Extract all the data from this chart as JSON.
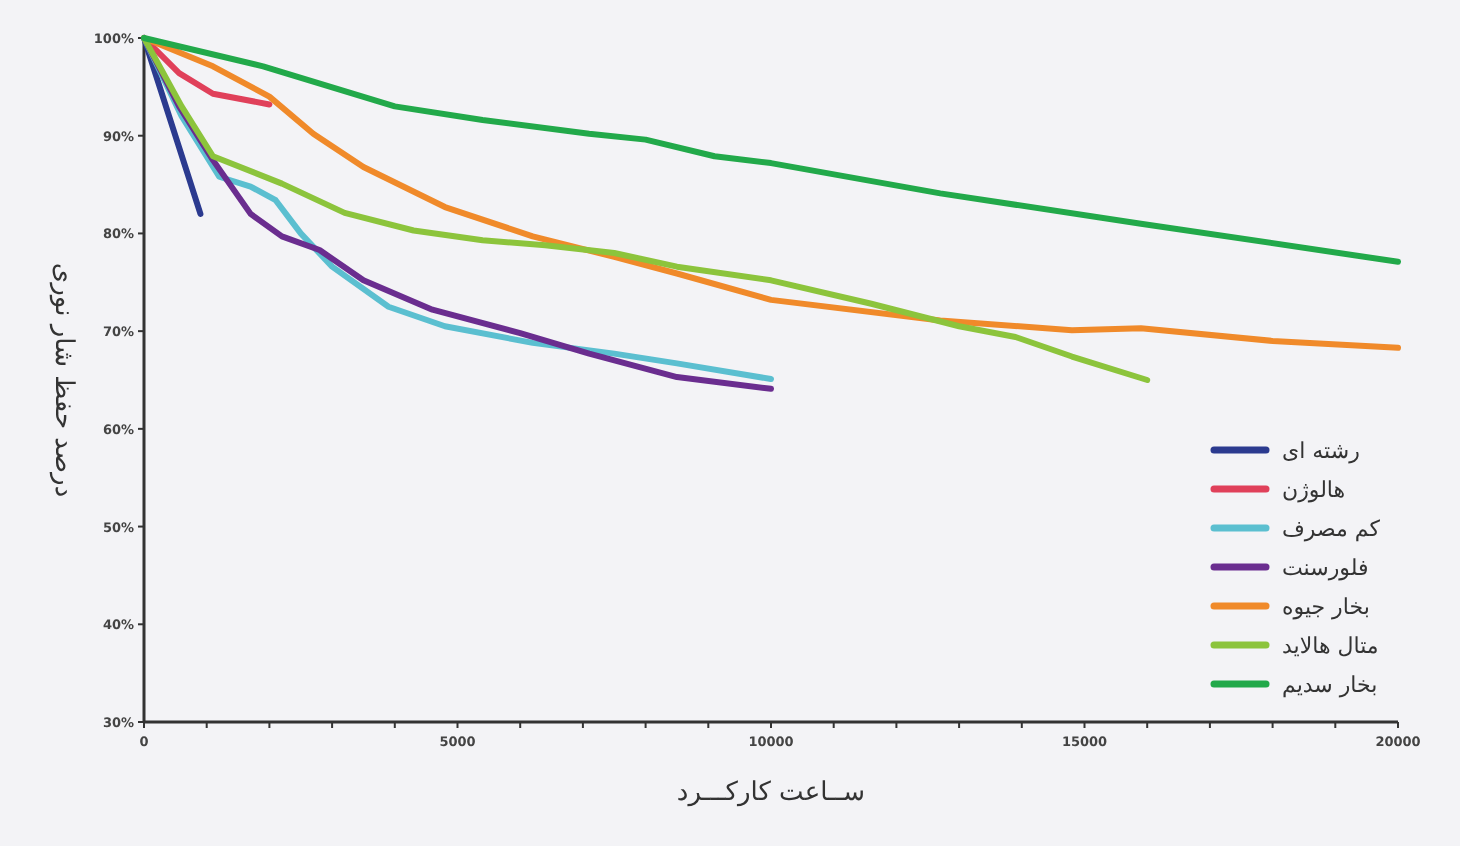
{
  "chart_data": {
    "type": "line",
    "xlabel": "ســاعت کارکـــرد",
    "ylabel": "درصد حفظ شار نوری",
    "xlim": [
      0,
      20000
    ],
    "ylim": [
      30,
      100
    ],
    "xticks": [
      0,
      {
        "value": 1000,
        "label": null
      },
      {
        "value": 2000,
        "label": null
      },
      {
        "value": 3000,
        "label": null
      },
      {
        "value": 4000,
        "label": null
      },
      5000,
      {
        "value": 6000,
        "label": null
      },
      {
        "value": 7000,
        "label": null
      },
      {
        "value": 8000,
        "label": null
      },
      {
        "value": 9000,
        "label": null
      },
      10000,
      {
        "value": 11000,
        "label": null
      },
      {
        "value": 12000,
        "label": null
      },
      {
        "value": 13000,
        "label": null
      },
      {
        "value": 14000,
        "label": null
      },
      15000,
      {
        "value": 16000,
        "label": null
      },
      {
        "value": 17000,
        "label": null
      },
      {
        "value": 18000,
        "label": null
      },
      {
        "value": 19000,
        "label": null
      },
      20000
    ],
    "yticks": [
      {
        "value": 30,
        "label": "30%"
      },
      {
        "value": 40,
        "label": "40%"
      },
      {
        "value": 50,
        "label": "50%"
      },
      {
        "value": 60,
        "label": "60%"
      },
      {
        "value": 70,
        "label": "70%"
      },
      {
        "value": 80,
        "label": "80%"
      },
      {
        "value": 90,
        "label": "90%"
      },
      {
        "value": 100,
        "label": "100%"
      }
    ],
    "grid": false,
    "legend": "bottom right",
    "marker": "none",
    "line_style": "solid",
    "series": [
      {
        "name": "رشته ای",
        "color": "#2b3a8f",
        "x": [
          0,
          900
        ],
        "values": [
          100,
          82
        ]
      },
      {
        "name": "هالوژن",
        "color": "#e0405a",
        "x": [
          0,
          560,
          1100,
          2000
        ],
        "values": [
          100,
          96.4,
          94.3,
          93.2
        ]
      },
      {
        "name": "کم مصرف",
        "color": "#5bbfd0",
        "x": [
          0,
          600,
          1200,
          1700,
          2100,
          2500,
          3000,
          3900,
          4800,
          6200,
          7500,
          8500,
          10000
        ],
        "values": [
          100,
          92,
          85.8,
          84.8,
          83.4,
          80,
          76.6,
          72.5,
          70.5,
          68.8,
          67.7,
          66.7,
          65.1
        ]
      },
      {
        "name": "فلورسنت",
        "color": "#6a2d8f",
        "x": [
          0,
          560,
          1100,
          1700,
          2200,
          2800,
          3500,
          4600,
          6000,
          7100,
          8500,
          10000
        ],
        "values": [
          100,
          93,
          87.5,
          82,
          79.7,
          78.3,
          75.2,
          72.2,
          69.8,
          67.7,
          65.3,
          64.1
        ]
      },
      {
        "name": "بخار جیوه",
        "color": "#f08a2a",
        "x": [
          0,
          1100,
          2000,
          2700,
          3500,
          4800,
          6200,
          7500,
          8500,
          10000,
          12700,
          14800,
          15900,
          18000,
          20000
        ],
        "values": [
          100,
          97.1,
          94,
          90.2,
          86.8,
          82.7,
          79.7,
          77.6,
          75.9,
          73.2,
          71.1,
          70.1,
          70.3,
          69,
          68.3
        ]
      },
      {
        "name": "متال هالاید",
        "color": "#8cc43c",
        "x": [
          0,
          600,
          1100,
          2200,
          3200,
          4300,
          5400,
          6400,
          7500,
          8500,
          10000,
          11600,
          13000,
          13900,
          14800,
          16000
        ],
        "values": [
          100,
          93,
          87.9,
          85.1,
          82.1,
          80.3,
          79.3,
          78.8,
          78,
          76.6,
          75.2,
          72.8,
          70.5,
          69.4,
          67.4,
          65
        ]
      },
      {
        "name": "بخار سدیم",
        "color": "#22a94a",
        "x": [
          0,
          1900,
          4000,
          5400,
          7100,
          8000,
          9100,
          10000,
          12700,
          15900,
          20000
        ],
        "values": [
          100,
          97.1,
          93,
          91.6,
          90.2,
          89.6,
          87.9,
          87.2,
          84.1,
          81,
          77.1
        ]
      }
    ]
  }
}
